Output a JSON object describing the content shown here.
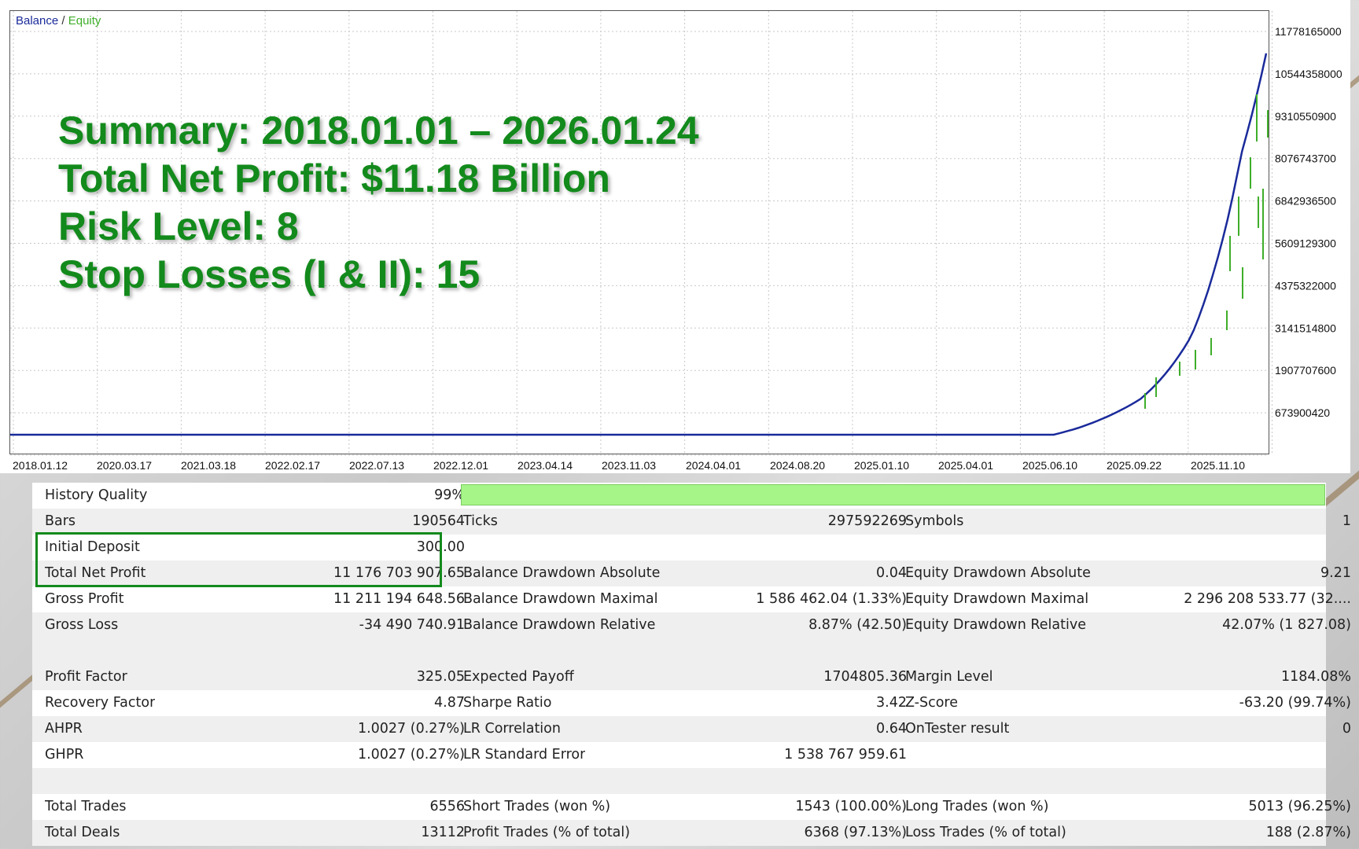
{
  "legend": {
    "balance": "Balance",
    "separator": "/",
    "equity": "Equity"
  },
  "summary": {
    "line1": "Summary: 2018.01.01 – 2026.01.24",
    "line2": "Total Net Profit: $11.18 Billion",
    "line3": "Risk Level: 8",
    "line4": "Stop Losses (I & II): 15"
  },
  "colors": {
    "balance": "#1a2a9a",
    "equity": "#3fae2a",
    "summary_text": "#138a1c",
    "quality_bar": "#a6f588",
    "highlight_border": "#138a1c"
  },
  "chart_data": {
    "type": "line",
    "xlabel": "",
    "ylabel": "",
    "x_ticks": [
      "2018.01.12",
      "2020.03.17",
      "2021.03.18",
      "2022.02.17",
      "2022.07.13",
      "2022.12.01",
      "2023.04.14",
      "2023.11.03",
      "2024.04.01",
      "2024.08.20",
      "2025.01.10",
      "2025.04.01",
      "2025.06.10",
      "2025.09.22",
      "2025.11.10"
    ],
    "y_ticks": [
      "11778165000",
      "10544358000",
      "9310550900",
      "8076743700",
      "6842936500",
      "5609129300",
      "4375322000",
      "3141514800",
      "1907707600",
      "673900420"
    ],
    "ylim": [
      -400000000,
      12400000000
    ],
    "grid": true,
    "legend_position": "top-left",
    "series": [
      {
        "name": "Balance",
        "x_index": [
          0,
          0.1,
          0.2,
          0.3,
          0.4,
          0.5,
          0.6,
          0.7,
          0.8,
          0.85,
          0.9,
          0.92,
          0.94,
          0.96,
          0.98,
          1
        ],
        "values": [
          300,
          300,
          300,
          1000000,
          5000000,
          20000000,
          60000000,
          180000000,
          500000000,
          900000000,
          1700000000,
          2400000000,
          3400000000,
          5400000000,
          8400000000,
          11176704207
        ]
      },
      {
        "name": "Equity",
        "note_dips": true
      }
    ]
  },
  "report": {
    "history_quality": {
      "label": "History Quality",
      "value": "99%"
    },
    "rows": [
      {
        "c1l": "Bars",
        "c1v": "190564",
        "c2l": "Ticks",
        "c2v": "297592269",
        "c3l": "Symbols",
        "c3v": "1"
      },
      {
        "c1l": "Initial Deposit",
        "c1v": "300.00",
        "c2l": "",
        "c2v": "",
        "c3l": "",
        "c3v": ""
      },
      {
        "c1l": "Total Net Profit",
        "c1v": "11 176 703 907.65",
        "c2l": "Balance Drawdown Absolute",
        "c2v": "0.04",
        "c3l": "Equity Drawdown Absolute",
        "c3v": "9.21"
      },
      {
        "c1l": "Gross Profit",
        "c1v": "11 211 194 648.56",
        "c2l": "Balance Drawdown Maximal",
        "c2v": "1 586 462.04 (1.33%)",
        "c3l": "Equity Drawdown Maximal",
        "c3v": "2 296 208 533.77 (32...."
      },
      {
        "c1l": "Gross Loss",
        "c1v": "-34 490 740.91",
        "c2l": "Balance Drawdown Relative",
        "c2v": "8.87% (42.50)",
        "c3l": "Equity Drawdown Relative",
        "c3v": "42.07% (1 827.08)"
      },
      {
        "blank": true
      },
      {
        "c1l": "Profit Factor",
        "c1v": "325.05",
        "c2l": "Expected Payoff",
        "c2v": "1704805.36",
        "c3l": "Margin Level",
        "c3v": "1184.08%"
      },
      {
        "c1l": "Recovery Factor",
        "c1v": "4.87",
        "c2l": "Sharpe Ratio",
        "c2v": "3.42",
        "c3l": "Z-Score",
        "c3v": "-63.20 (99.74%)"
      },
      {
        "c1l": "AHPR",
        "c1v": "1.0027 (0.27%)",
        "c2l": "LR Correlation",
        "c2v": "0.64",
        "c3l": "OnTester result",
        "c3v": "0"
      },
      {
        "c1l": "GHPR",
        "c1v": "1.0027 (0.27%)",
        "c2l": "LR Standard Error",
        "c2v": "1 538 767 959.61",
        "c3l": "",
        "c3v": ""
      },
      {
        "blank": true
      },
      {
        "c1l": "Total Trades",
        "c1v": "6556",
        "c2l": "Short Trades (won %)",
        "c2v": "1543 (100.00%)",
        "c3l": "Long Trades (won %)",
        "c3v": "5013 (96.25%)"
      },
      {
        "c1l": "Total Deals",
        "c1v": "13112",
        "c2l": "Profit Trades (% of total)",
        "c2v": "6368 (97.13%)",
        "c3l": "Loss Trades (% of total)",
        "c3v": "188 (2.87%)"
      }
    ]
  }
}
